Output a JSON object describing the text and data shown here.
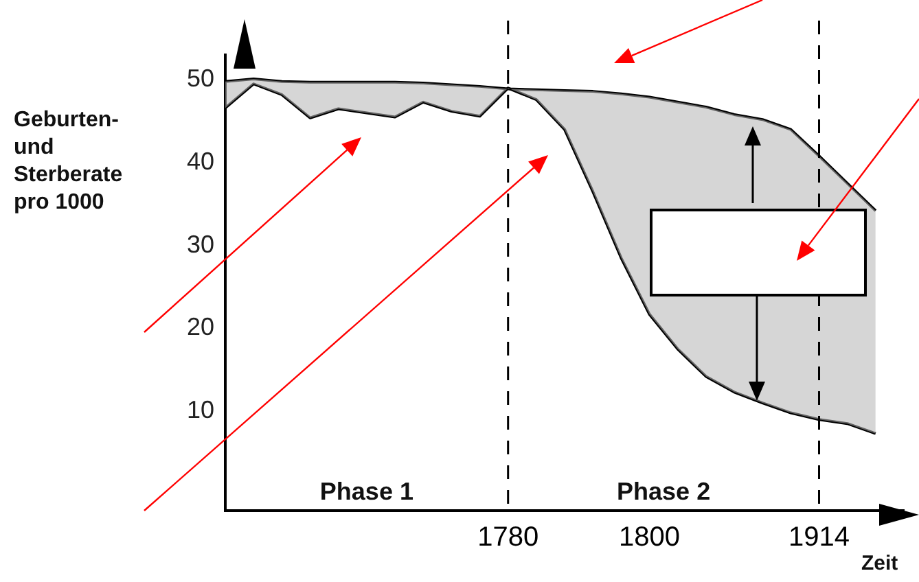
{
  "chart_data": {
    "type": "line",
    "xlabel": "Zeit",
    "ylabel": "Geburten- und Sterberate pro 1000",
    "categories": [
      null,
      null,
      null,
      null,
      null,
      null,
      null,
      null,
      null,
      null,
      "1780",
      null,
      null,
      null,
      null,
      "1800",
      null,
      null,
      null,
      null,
      null,
      "1914",
      null,
      null,
      null
    ],
    "series": [
      {
        "color": "#000000",
        "values": [
          49.8,
          50.1,
          49.8,
          49.7,
          49.7,
          49.7,
          49.7,
          49.6,
          49.4,
          49.2,
          48.9,
          48.8,
          48.7,
          48.6,
          48.3,
          47.9,
          47.3,
          46.7,
          45.8,
          45.2,
          44.0,
          40.8,
          37.5,
          34.2,
          null
        ],
        "upper": [
          49.8,
          50.1,
          49.8,
          49.7,
          49.7,
          49.7,
          49.7,
          49.6,
          49.4,
          49.2,
          48.9,
          48.8,
          48.7,
          48.6,
          48.3,
          47.9,
          47.3,
          46.7,
          45.8,
          45.2,
          44.0,
          40.8,
          37.5,
          34.2,
          null
        ],
        "lower": [
          46.6,
          49.5,
          48.2,
          45.4,
          46.5,
          46.0,
          45.5,
          47.3,
          46.2,
          45.6,
          49.0,
          47.6,
          44.0,
          36.5,
          28.5,
          21.7,
          17.5,
          14.2,
          12.3,
          11.0,
          9.8,
          9.0,
          8.5,
          7.3,
          null
        ]
      },
      {
        "color": "#000000",
        "values": [
          46.6,
          49.5,
          48.2,
          45.4,
          46.5,
          46.0,
          45.5,
          47.3,
          46.2,
          45.6,
          49.0,
          47.6,
          44.0,
          36.5,
          28.5,
          21.7,
          17.5,
          14.2,
          12.3,
          11.0,
          9.8,
          9.0,
          8.5,
          7.3,
          null
        ]
      }
    ],
    "ylim": [
      -2,
      53
    ],
    "yticks": [
      10,
      20,
      30,
      40,
      50
    ],
    "grid": false,
    "legend": false,
    "marker": "none",
    "line_style": "solid",
    "ref_lines": [
      {
        "axis": "x",
        "value": "1780",
        "line_style": "dashed"
      },
      {
        "axis": "x",
        "value": "1914",
        "line_style": "dashed"
      }
    ],
    "annotations": [
      "Phase 1",
      "Phase 2"
    ]
  }
}
